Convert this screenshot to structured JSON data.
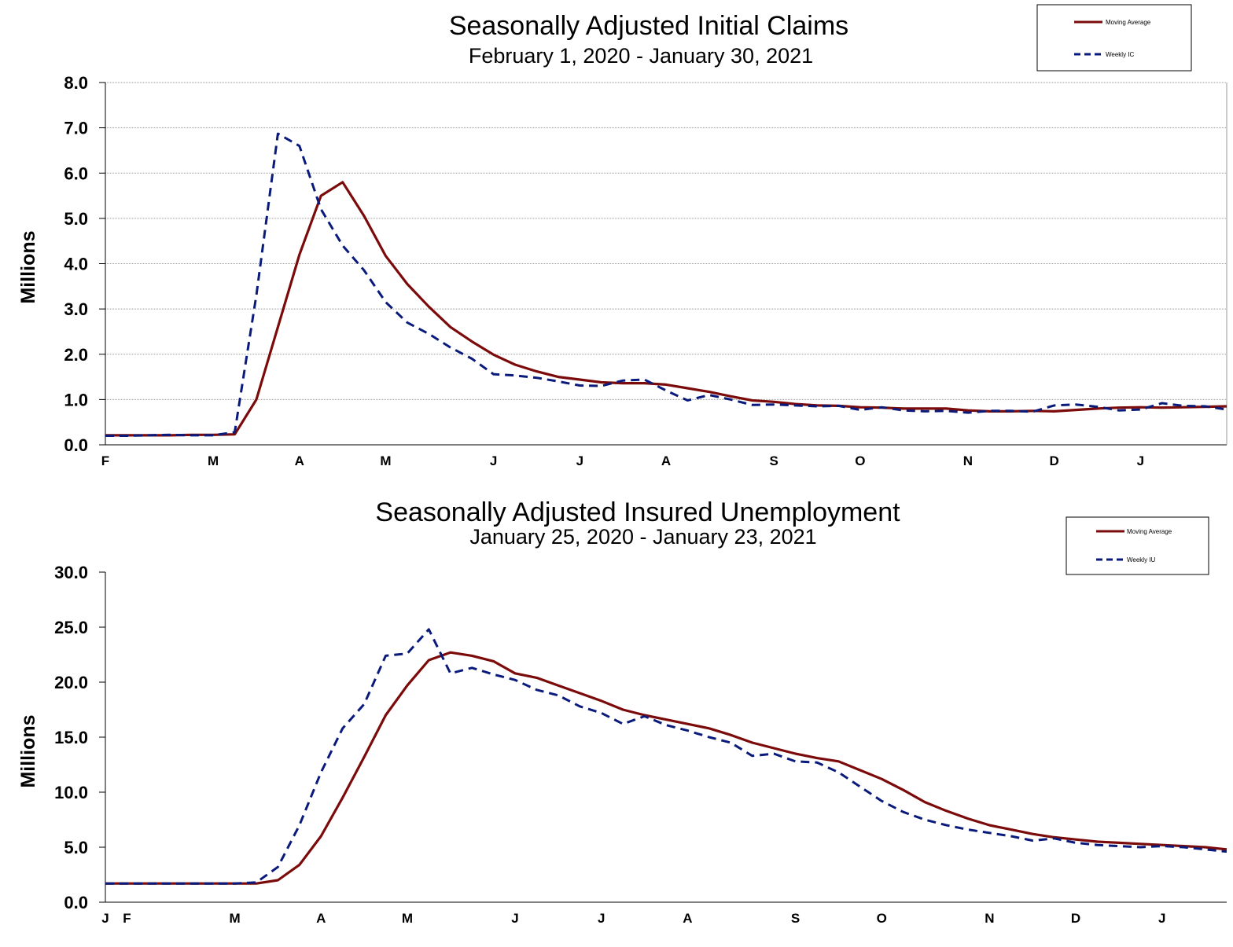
{
  "colors": {
    "moving_average": "#7b0a0a",
    "weekly": "#0a1a7b",
    "grid": "#9a9a9a",
    "axis": "#000000"
  },
  "chart_data": [
    {
      "type": "line",
      "title": "Seasonally Adjusted Initial Claims",
      "subtitle": "February 1, 2020 - January 30, 2021",
      "ylabel": "Millions",
      "ylim": [
        0,
        8
      ],
      "yticks": [
        "0.0",
        "1.0",
        "2.0",
        "3.0",
        "4.0",
        "5.0",
        "6.0",
        "7.0",
        "8.0"
      ],
      "month_labels": [
        "F",
        "M",
        "A",
        "M",
        "J",
        "J",
        "A",
        "S",
        "O",
        "N",
        "D",
        "J"
      ],
      "month_week_index": [
        0,
        5,
        9,
        13,
        18,
        22,
        26,
        31,
        35,
        40,
        44,
        48
      ],
      "grid": true,
      "legend_position": "top-right",
      "series": [
        {
          "name": "Moving Average",
          "style": "solid",
          "values": [
            0.21,
            0.21,
            0.21,
            0.21,
            0.22,
            0.22,
            0.23,
            1.0,
            2.6,
            4.2,
            5.5,
            5.8,
            5.05,
            4.17,
            3.55,
            3.05,
            2.6,
            2.28,
            1.99,
            1.77,
            1.62,
            1.5,
            1.44,
            1.38,
            1.36,
            1.36,
            1.33,
            1.25,
            1.17,
            1.07,
            0.98,
            0.95,
            0.9,
            0.87,
            0.86,
            0.83,
            0.82,
            0.8,
            0.8,
            0.8,
            0.76,
            0.74,
            0.74,
            0.75,
            0.74,
            0.77,
            0.8,
            0.82,
            0.83,
            0.82,
            0.83,
            0.84,
            0.85
          ]
        },
        {
          "name": "Weekly IC",
          "style": "dashed",
          "values": [
            0.2,
            0.2,
            0.21,
            0.22,
            0.21,
            0.21,
            0.28,
            3.3,
            6.87,
            6.6,
            5.2,
            4.4,
            3.85,
            3.15,
            2.7,
            2.45,
            2.15,
            1.9,
            1.56,
            1.53,
            1.48,
            1.4,
            1.31,
            1.3,
            1.42,
            1.44,
            1.2,
            0.98,
            1.1,
            1.0,
            0.88,
            0.89,
            0.87,
            0.85,
            0.86,
            0.77,
            0.83,
            0.76,
            0.74,
            0.75,
            0.71,
            0.75,
            0.75,
            0.73,
            0.87,
            0.89,
            0.84,
            0.76,
            0.78,
            0.92,
            0.86,
            0.85,
            0.78
          ]
        }
      ]
    },
    {
      "type": "line",
      "title": "Seasonally Adjusted Insured Unemployment",
      "subtitle": "January 25, 2020 - January 23, 2021",
      "ylabel": "Millions",
      "ylim": [
        0,
        30
      ],
      "yticks": [
        "0.0",
        "5.0",
        "10.0",
        "15.0",
        "20.0",
        "25.0",
        "30.0"
      ],
      "month_labels": [
        "J",
        "F",
        "M",
        "A",
        "M",
        "J",
        "J",
        "A",
        "S",
        "O",
        "N",
        "D",
        "J"
      ],
      "month_week_index": [
        0,
        1,
        6,
        10,
        14,
        19,
        23,
        27,
        32,
        36,
        41,
        45,
        49
      ],
      "grid": false,
      "legend_position": "top-right",
      "series": [
        {
          "name": "Moving Average",
          "style": "solid",
          "values": [
            1.7,
            1.7,
            1.7,
            1.7,
            1.7,
            1.7,
            1.7,
            1.7,
            2.0,
            3.4,
            6.0,
            9.5,
            13.2,
            17.0,
            19.7,
            22.0,
            22.7,
            22.4,
            21.9,
            20.8,
            20.4,
            19.7,
            19.0,
            18.3,
            17.5,
            17.0,
            16.6,
            16.2,
            15.8,
            15.2,
            14.5,
            14.0,
            13.5,
            13.1,
            12.8,
            12.0,
            11.2,
            10.2,
            9.1,
            8.3,
            7.6,
            7.0,
            6.6,
            6.2,
            5.9,
            5.7,
            5.5,
            5.4,
            5.3,
            5.2,
            5.1,
            5.0,
            4.8
          ]
        },
        {
          "name": "Weekly IU",
          "style": "dashed",
          "values": [
            1.7,
            1.7,
            1.7,
            1.7,
            1.7,
            1.7,
            1.7,
            1.8,
            3.2,
            7.0,
            11.8,
            15.8,
            18.0,
            22.4,
            22.6,
            24.8,
            20.8,
            21.3,
            20.7,
            20.2,
            19.3,
            18.8,
            17.8,
            17.2,
            16.2,
            16.9,
            16.1,
            15.6,
            15.0,
            14.5,
            13.3,
            13.5,
            12.8,
            12.7,
            11.8,
            10.5,
            9.2,
            8.2,
            7.5,
            7.0,
            6.6,
            6.3,
            6.0,
            5.6,
            5.8,
            5.4,
            5.2,
            5.1,
            5.0,
            5.1,
            5.0,
            4.8,
            4.6
          ]
        }
      ]
    }
  ],
  "legends": [
    {
      "items": [
        "Moving Average",
        "Weekly IC"
      ]
    },
    {
      "items": [
        "Moving Average",
        "Weekly IU"
      ]
    }
  ]
}
